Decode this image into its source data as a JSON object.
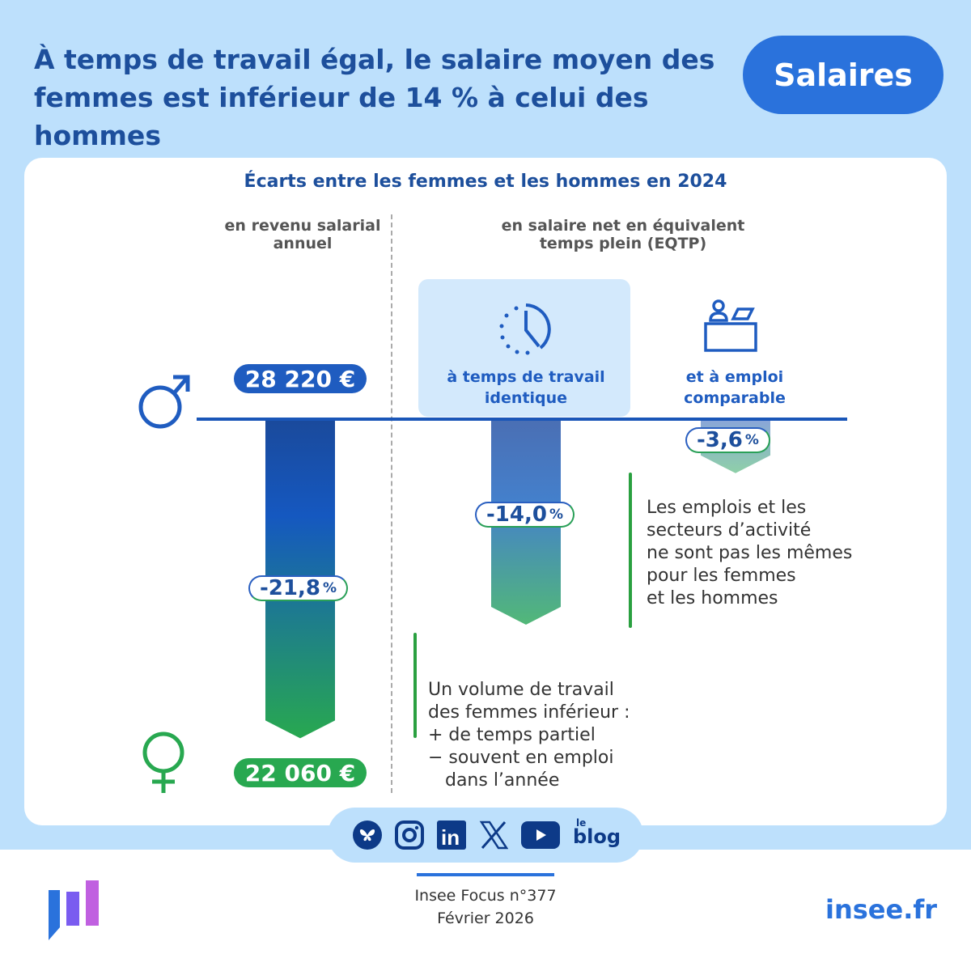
{
  "header": {
    "title": "À temps de travail égal, le salaire moyen des femmes est inférieur de 14 % à celui des hommes",
    "tag": "Salaires"
  },
  "chart_data": {
    "type": "bar",
    "title": "Écarts entre les femmes et les hommes en 2024",
    "groups": [
      {
        "label": "en revenu salarial annuel"
      },
      {
        "label": "en salaire net en équivalent temps plein (EQTP)"
      }
    ],
    "categories": [
      "en revenu salarial annuel",
      "à temps de travail identique",
      "et à emploi comparable"
    ],
    "values": [
      -21.8,
      -14.0,
      -3.6
    ],
    "value_labels": [
      "-21,8",
      "-14,0",
      "-3,6"
    ],
    "unit": "%",
    "men_income": "28 220 €",
    "women_income": "22 060 €",
    "colors": {
      "top": "#1a4a9c",
      "bottom": "#28a850"
    }
  },
  "notes": {
    "sectors": [
      "Les emplois et les",
      "secteurs d’activité",
      "ne sont pas les mêmes",
      "pour les femmes",
      "et les hommes"
    ],
    "volume": [
      "Un volume de travail",
      "des femmes inférieur :",
      "+ de temps partiel",
      "− souvent en emploi",
      "   dans l’année"
    ]
  },
  "social": {
    "icons": [
      "bluesky-icon",
      "instagram-icon",
      "linkedin-icon",
      "x-icon",
      "youtube-icon",
      "blog-icon"
    ],
    "blog_label": "blog",
    "blog_prefix": "le"
  },
  "footer": {
    "publication": "Insee Focus n°377",
    "date": "Février 2026",
    "site": "insee.fr"
  }
}
